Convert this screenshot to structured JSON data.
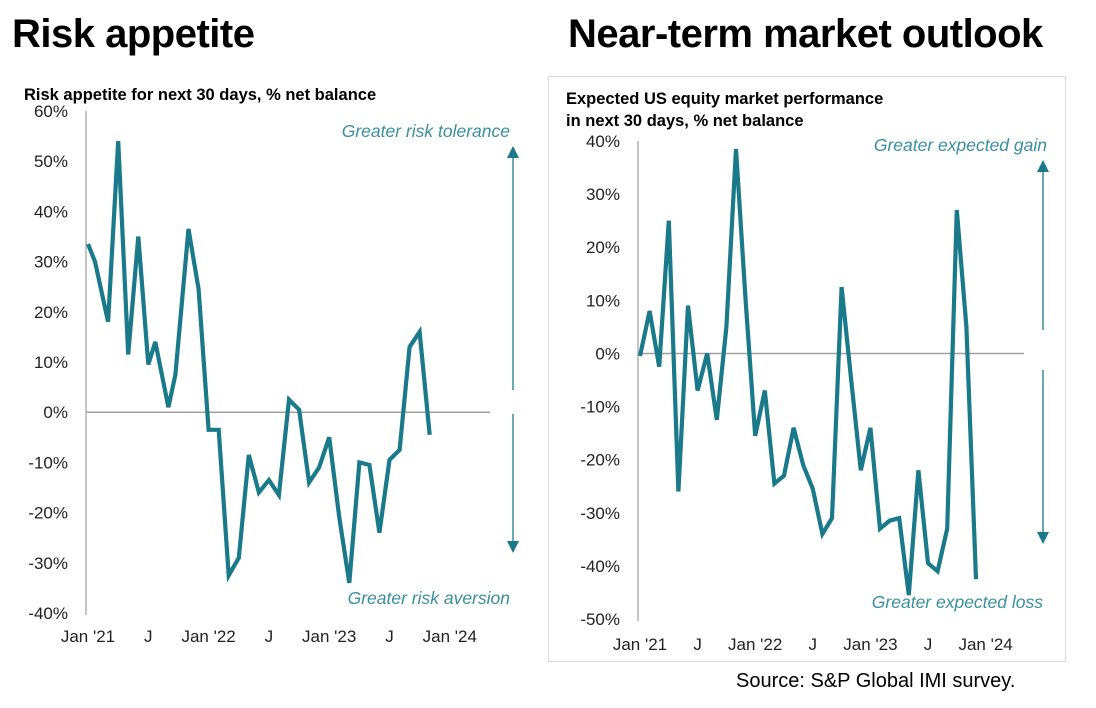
{
  "headings": {
    "left": "Risk appetite",
    "right": "Near-term market outlook"
  },
  "source": "Source: S&P Global IMI survey.",
  "colors": {
    "line": "#1a7a8a",
    "annotation": "#3a8fa0",
    "zero_line": "#a0a0a0",
    "axis": "#b0b0b0",
    "arrow": "#1a7a8a"
  },
  "chart_data": [
    {
      "type": "line",
      "title": "Risk appetite for next 30 days, % net balance",
      "ylim": [
        -40,
        60
      ],
      "yticks": [
        60,
        50,
        40,
        30,
        20,
        10,
        0,
        -10,
        -20,
        -30,
        -40
      ],
      "ytick_labels": [
        "60%",
        "50%",
        "40%",
        "30%",
        "20%",
        "10%",
        "0%",
        "-10%",
        "-20%",
        "-30%",
        "-40%"
      ],
      "xlim": [
        0,
        40
      ],
      "xticks": [
        0,
        6,
        12,
        18,
        24,
        30,
        36
      ],
      "xtick_labels": [
        "Jan '21",
        "J",
        "Jan '22",
        "J",
        "Jan '23",
        "J",
        "Jan '24"
      ],
      "annotations": {
        "top": "Greater risk tolerance",
        "bottom": "Greater risk aversion"
      },
      "series": [
        {
          "x": [
            0,
            0.7,
            2,
            3,
            4,
            5,
            6,
            6.7,
            8,
            8.7,
            10,
            11,
            12,
            13,
            14,
            15,
            16,
            17,
            18,
            19,
            20,
            21,
            22,
            23,
            24,
            25,
            26,
            27,
            28,
            29,
            30,
            31,
            32,
            33,
            34,
            35,
            36,
            37
          ],
          "y": [
            33.5,
            30,
            18,
            54,
            11.5,
            35,
            9.5,
            14,
            1,
            7.5,
            36.5,
            24.5,
            -3.5,
            -3.5,
            -32.5,
            -29,
            -8.5,
            -16,
            -13.5,
            -16.5,
            2.5,
            0.5,
            -14,
            -11,
            -5,
            -21,
            -34,
            -10,
            -10.5,
            -24,
            -9.5,
            -7.5,
            13,
            16,
            -4.5,
            null,
            null,
            null
          ]
        }
      ]
    },
    {
      "type": "line",
      "title": "Expected US equity market performance in next 30 days, % net balance",
      "title_lines": [
        "Expected US equity market performance",
        "in next 30 days, % net balance"
      ],
      "ylim": [
        -50,
        40
      ],
      "yticks": [
        40,
        30,
        20,
        10,
        0,
        -10,
        -20,
        -30,
        -40,
        -50
      ],
      "ytick_labels": [
        "40%",
        "30%",
        "20%",
        "10%",
        "0%",
        "-10%",
        "-20%",
        "-30%",
        "-40%",
        "-50%"
      ],
      "xlim": [
        0,
        40
      ],
      "xticks": [
        0,
        6,
        12,
        18,
        24,
        30,
        36
      ],
      "xtick_labels": [
        "Jan '21",
        "J",
        "Jan '22",
        "J",
        "Jan '23",
        "J",
        "Jan '24"
      ],
      "annotations": {
        "top": "Greater expected gain",
        "bottom": "Greater  expected loss"
      },
      "series": [
        {
          "x": [
            0,
            1,
            2,
            3,
            4,
            5,
            6,
            7,
            8,
            9,
            10,
            11,
            12,
            13,
            14,
            15,
            16,
            17,
            18,
            19,
            20,
            21,
            22,
            23,
            24,
            25,
            26,
            27,
            28,
            29,
            30,
            31,
            32,
            33,
            34,
            35,
            36,
            37
          ],
          "y": [
            -0.5,
            8,
            -2.5,
            25,
            -26,
            9,
            -7,
            0,
            -12.5,
            5,
            38.5,
            10,
            -15.5,
            -7,
            -24.5,
            -23,
            -14,
            -21,
            -25.5,
            -34,
            -31,
            12.5,
            -5,
            -22,
            -14,
            -33,
            -31.5,
            -31,
            -45.5,
            -22,
            -39.5,
            -41,
            -33,
            27,
            5,
            -42.5,
            null,
            null
          ]
        }
      ]
    }
  ]
}
